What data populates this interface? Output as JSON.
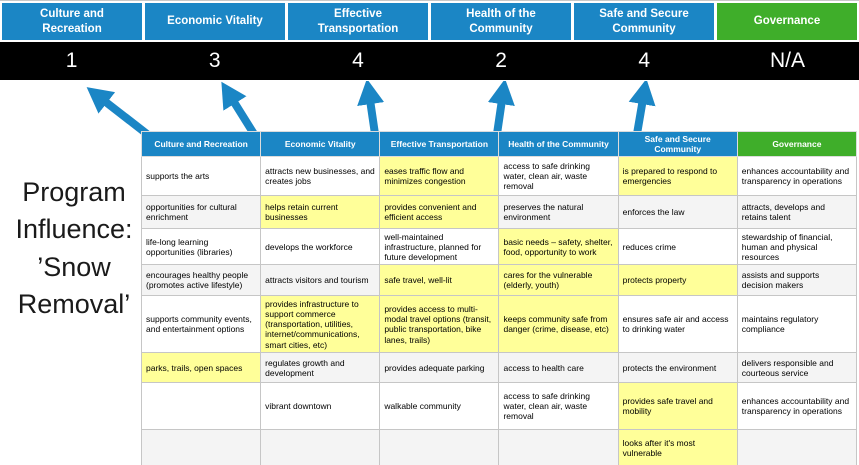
{
  "title": "Program Influence: ’Snow Removal’",
  "colors": {
    "header_blue": "#1b86c5",
    "governance_green": "#3fae2a",
    "score_band_black": "#000000",
    "highlight_yellow": "#ffff99",
    "arrow_blue": "#1b86c5"
  },
  "icons": {
    "up_arrow": "blue block arrow pointing up"
  },
  "categories": [
    {
      "label": "Culture and Recreation",
      "score": "1"
    },
    {
      "label": "Economic Vitality",
      "score": "3"
    },
    {
      "label": "Effective Transportation",
      "score": "4"
    },
    {
      "label": "Health of the Community",
      "score": "2"
    },
    {
      "label": "Safe and Secure Community",
      "score": "4"
    },
    {
      "label": "Governance",
      "score": "N/A"
    }
  ],
  "table": {
    "headers": [
      "Culture and Recreation",
      "Economic Vitality",
      "Effective Transportation",
      "Health of the Community",
      "Safe and Secure Community",
      "Governance"
    ],
    "rows": [
      [
        {
          "text": "supports the arts",
          "highlight": false
        },
        {
          "text": "attracts new businesses, and creates jobs",
          "highlight": false
        },
        {
          "text": "eases traffic flow and minimizes congestion",
          "highlight": true
        },
        {
          "text": "access to safe drinking water, clean air, waste removal",
          "highlight": false
        },
        {
          "text": "is prepared to respond to emergencies",
          "highlight": true
        },
        {
          "text": "enhances accountability and transparency in operations",
          "highlight": false
        }
      ],
      [
        {
          "text": "opportunities for cultural enrichment",
          "highlight": false
        },
        {
          "text": "helps retain current businesses",
          "highlight": true
        },
        {
          "text": "provides convenient and efficient access",
          "highlight": true
        },
        {
          "text": "preserves the natural environment",
          "highlight": false
        },
        {
          "text": "enforces the law",
          "highlight": false
        },
        {
          "text": "attracts, develops and retains talent",
          "highlight": false
        }
      ],
      [
        {
          "text": "life-long learning opportunities (libraries)",
          "highlight": false
        },
        {
          "text": "develops the workforce",
          "highlight": false
        },
        {
          "text": "well-maintained infrastructure, planned for future development",
          "highlight": false
        },
        {
          "text": "basic needs – safety, shelter, food, opportunity to work",
          "highlight": true
        },
        {
          "text": "reduces crime",
          "highlight": false
        },
        {
          "text": "stewardship of financial, human and physical resources",
          "highlight": false
        }
      ],
      [
        {
          "text": "encourages healthy people (promotes active lifestyle)",
          "highlight": false
        },
        {
          "text": "attracts visitors and tourism",
          "highlight": false
        },
        {
          "text": "safe travel, well-lit",
          "highlight": true
        },
        {
          "text": "cares for the vulnerable (elderly, youth)",
          "highlight": true
        },
        {
          "text": "protects property",
          "highlight": true
        },
        {
          "text": "assists and supports decision makers",
          "highlight": false
        }
      ],
      [
        {
          "text": "supports community events, and entertainment options",
          "highlight": false
        },
        {
          "text": "provides infrastructure to support commerce (transportation, utilities, internet/communications, smart cities, etc)",
          "highlight": true
        },
        {
          "text": "provides access to multi-modal travel options (transit, public transportation, bike lanes, trails)",
          "highlight": true
        },
        {
          "text": "keeps community safe from danger (crime, disease, etc)",
          "highlight": true
        },
        {
          "text": "ensures safe air and access to drinking water",
          "highlight": false
        },
        {
          "text": "maintains regulatory compliance",
          "highlight": false
        }
      ],
      [
        {
          "text": "parks, trails, open spaces",
          "highlight": true
        },
        {
          "text": "regulates growth and development",
          "highlight": false
        },
        {
          "text": "provides adequate parking",
          "highlight": false
        },
        {
          "text": "access to health care",
          "highlight": false
        },
        {
          "text": "protects the environment",
          "highlight": false
        },
        {
          "text": "delivers responsible and courteous service",
          "highlight": false
        }
      ],
      [
        {
          "text": "",
          "highlight": false
        },
        {
          "text": "vibrant downtown",
          "highlight": false
        },
        {
          "text": "walkable community",
          "highlight": false
        },
        {
          "text": "access to safe drinking water, clean air, waste removal",
          "highlight": false
        },
        {
          "text": "provides safe travel and mobility",
          "highlight": true
        },
        {
          "text": "enhances accountability and transparency in operations",
          "highlight": false
        }
      ],
      [
        {
          "text": "",
          "highlight": false
        },
        {
          "text": "",
          "highlight": false
        },
        {
          "text": "",
          "highlight": false
        },
        {
          "text": "",
          "highlight": false
        },
        {
          "text": "looks after it's most vulnerable",
          "highlight": true
        },
        {
          "text": "",
          "highlight": false
        }
      ]
    ]
  }
}
